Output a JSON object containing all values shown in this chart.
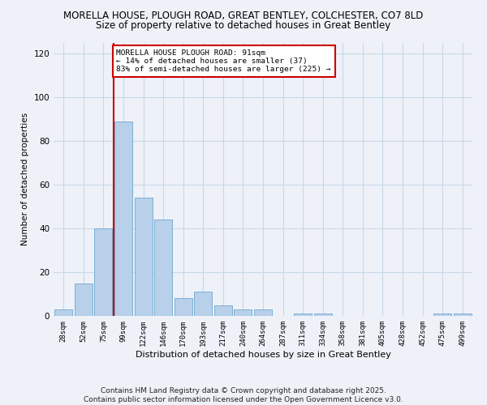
{
  "title": "MORELLA HOUSE, PLOUGH ROAD, GREAT BENTLEY, COLCHESTER, CO7 8LD",
  "subtitle": "Size of property relative to detached houses in Great Bentley",
  "xlabel": "Distribution of detached houses by size in Great Bentley",
  "ylabel": "Number of detached properties",
  "categories": [
    "28sqm",
    "52sqm",
    "75sqm",
    "99sqm",
    "122sqm",
    "146sqm",
    "170sqm",
    "193sqm",
    "217sqm",
    "240sqm",
    "264sqm",
    "287sqm",
    "311sqm",
    "334sqm",
    "358sqm",
    "381sqm",
    "405sqm",
    "428sqm",
    "452sqm",
    "475sqm",
    "499sqm"
  ],
  "values": [
    3,
    15,
    40,
    89,
    54,
    44,
    8,
    11,
    5,
    3,
    3,
    0,
    1,
    1,
    0,
    0,
    0,
    0,
    0,
    1,
    1
  ],
  "bar_color": "#b8d0ea",
  "bar_edge_color": "#6ea8d0",
  "annotation_text": "MORELLA HOUSE PLOUGH ROAD: 91sqm\n← 14% of detached houses are smaller (37)\n83% of semi-detached houses are larger (225) →",
  "annotation_box_color": "#ffffff",
  "annotation_box_edge": "#cc0000",
  "vline_color": "#cc0000",
  "vline_x": 2.5,
  "ylim": [
    0,
    125
  ],
  "yticks": [
    0,
    20,
    40,
    60,
    80,
    100,
    120
  ],
  "grid_color": "#c8d8e8",
  "background_color": "#eef2f8",
  "footer": "Contains HM Land Registry data © Crown copyright and database right 2025.\nContains public sector information licensed under the Open Government Licence v3.0.",
  "title_fontsize": 8.5,
  "subtitle_fontsize": 8.5,
  "footer_fontsize": 6.5
}
